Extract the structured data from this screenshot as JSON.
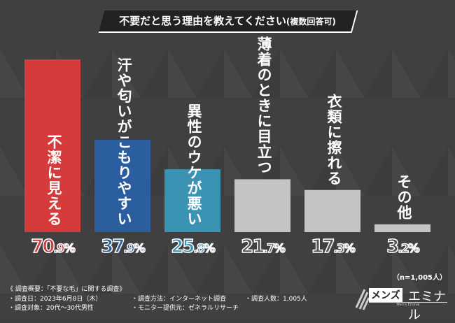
{
  "chart_data": {
    "type": "bar",
    "title": "不要だと思う理由を教えてください",
    "title_suffix": "(複数回答可)",
    "categories": [
      "不潔に見える",
      "汗や匂いがこもりやすい",
      "異性のウケが悪い",
      "薄着のときに目立つ",
      "衣類に擦れる",
      "その他"
    ],
    "values": [
      70.9,
      37.9,
      25.8,
      21.7,
      17.3,
      3.2
    ],
    "value_labels": [
      [
        "70",
        ".9%"
      ],
      [
        "37",
        ".9%"
      ],
      [
        "25",
        ".8%"
      ],
      [
        "21",
        ".7%"
      ],
      [
        "17",
        ".3%"
      ],
      [
        "3",
        ".2%"
      ]
    ],
    "colors": [
      "#d63b3b",
      "#2b5e9e",
      "#3b93b3",
      "#c4c4c4",
      "#c4c4c4",
      "#c4c4c4"
    ],
    "ylim": [
      0,
      75
    ],
    "grid": false,
    "sample_note": "（n=1,005人）"
  },
  "footer": {
    "heading": "《 調査概要：「不要な毛」に関する調査》",
    "items": [
      "・調査日：2023年6月8日（木）",
      "・調査対象：20代〜30代男性",
      "・調査方法：インターネット調査",
      "・モニター提供元：ゼネラルリサーチ",
      "・調査人数：1,005人"
    ]
  },
  "logo": {
    "box": "メンズ",
    "text": "エミナル",
    "sub": "Men's Eminal"
  }
}
